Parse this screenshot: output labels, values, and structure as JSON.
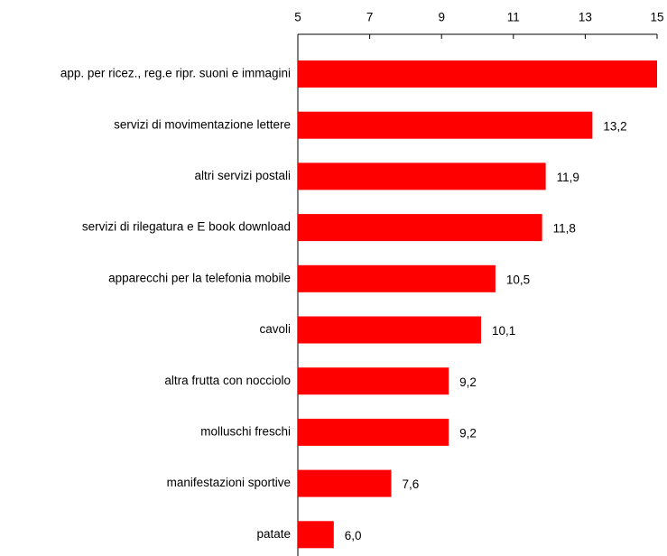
{
  "chart_data": {
    "type": "hbar",
    "categories": [
      "app. per ricez., reg.e ripr. suoni e immagini",
      "servizi di movimentazione lettere",
      "altri servizi postali",
      "servizi di rilegatura e E book download",
      "apparecchi per la telefonia mobile",
      "cavoli",
      "altra frutta con nocciolo",
      "molluschi freschi",
      "manifestazioni sportive",
      "patate"
    ],
    "values": [
      15,
      13.2,
      11.9,
      11.8,
      10.5,
      10.1,
      9.2,
      9.2,
      7.6,
      6.0
    ],
    "value_labels": [
      null,
      "13,2",
      "11,9",
      "11,8",
      "10,5",
      "10,1",
      "9,2",
      "9,2",
      "7,6",
      "6,0"
    ],
    "color": "#ff0000",
    "xlim": [
      5,
      15
    ],
    "xticks": [
      5,
      7,
      9,
      11,
      13,
      15
    ]
  }
}
